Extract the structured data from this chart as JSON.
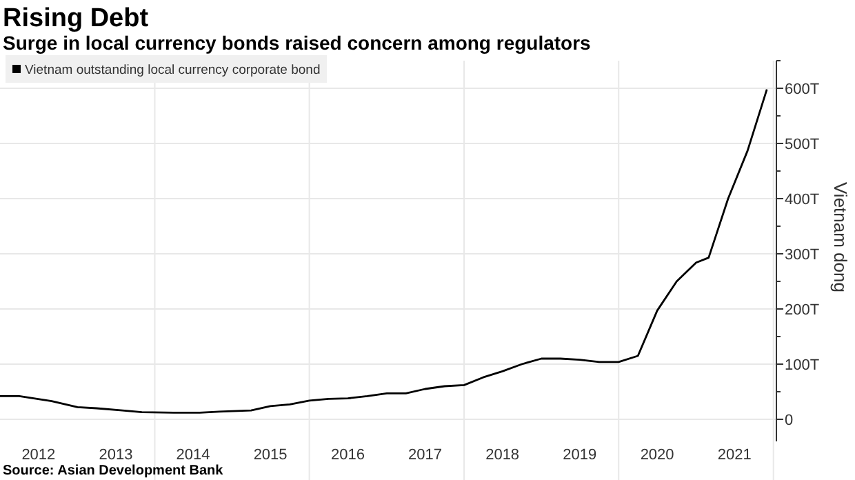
{
  "chart_data": {
    "type": "line",
    "title": "Rising Debt",
    "subtitle": "Surge in local currency bonds raised concern among regulators",
    "ylabel": "Vietnam dong",
    "annotations": [
      "Source: Asian Development Bank"
    ],
    "legend": "top left",
    "grid": true,
    "marker": "none",
    "line_style": "solid",
    "x": [
      "2012-01",
      "2012-04",
      "2012-09",
      "2013-01",
      "2013-04",
      "2013-08",
      "2013-11",
      "2014-04",
      "2014-08",
      "2014-11",
      "2015-04",
      "2015-07",
      "2015-10",
      "2016-01",
      "2016-04",
      "2016-07",
      "2016-10",
      "2017-01",
      "2017-04",
      "2017-07",
      "2017-10",
      "2018-01",
      "2018-04",
      "2018-07",
      "2018-10",
      "2019-01",
      "2019-04",
      "2019-07",
      "2019-10",
      "2020-01",
      "2020-04",
      "2020-07",
      "2020-10",
      "2021-01",
      "2021-03",
      "2021-06",
      "2021-09",
      "2021-12"
    ],
    "series": [
      {
        "name": "Vietnam outstanding local currency corporate bond",
        "color": "#000000",
        "values": [
          42,
          42,
          33,
          22,
          20,
          16,
          13,
          12,
          12,
          14,
          16,
          24,
          27,
          34,
          37,
          38,
          42,
          47,
          47,
          55,
          60,
          62,
          76,
          87,
          100,
          110,
          110,
          108,
          104,
          104,
          115,
          197,
          250,
          284,
          293,
          400,
          487,
          598
        ]
      }
    ],
    "xlim": [
      "2012-01-01",
      "2022-01-15"
    ],
    "xticks": [
      {
        "value": "2012-07-01",
        "label": "2012"
      },
      {
        "value": "2013-07-01",
        "label": "2013"
      },
      {
        "value": "2014-01-01",
        "label": null
      },
      {
        "value": "2014-07-01",
        "label": "2014"
      },
      {
        "value": "2015-07-01",
        "label": "2015"
      },
      {
        "value": "2016-01-01",
        "label": null
      },
      {
        "value": "2016-07-01",
        "label": "2016"
      },
      {
        "value": "2017-07-01",
        "label": "2017"
      },
      {
        "value": "2018-01-01",
        "label": null
      },
      {
        "value": "2018-07-01",
        "label": "2018"
      },
      {
        "value": "2019-07-01",
        "label": "2019"
      },
      {
        "value": "2020-01-01",
        "label": null
      },
      {
        "value": "2020-07-01",
        "label": "2020"
      },
      {
        "value": "2021-07-01",
        "label": "2021"
      },
      {
        "value": "2022-01-01",
        "label": null
      }
    ],
    "ylim": [
      -40,
      650
    ],
    "yticks": [
      0,
      {
        "value": 50,
        "label": null
      },
      {
        "value": 100,
        "label": "100T"
      },
      {
        "value": 150,
        "label": null
      },
      {
        "value": 200,
        "label": "200T"
      },
      {
        "value": 250,
        "label": null
      },
      {
        "value": 300,
        "label": "300T"
      },
      {
        "value": 350,
        "label": null
      },
      {
        "value": 400,
        "label": "400T"
      },
      {
        "value": 450,
        "label": null
      },
      {
        "value": 500,
        "label": "500T"
      },
      {
        "value": 550,
        "label": null
      },
      {
        "value": 600,
        "label": "600T"
      },
      {
        "value": 650,
        "label": null
      }
    ]
  }
}
